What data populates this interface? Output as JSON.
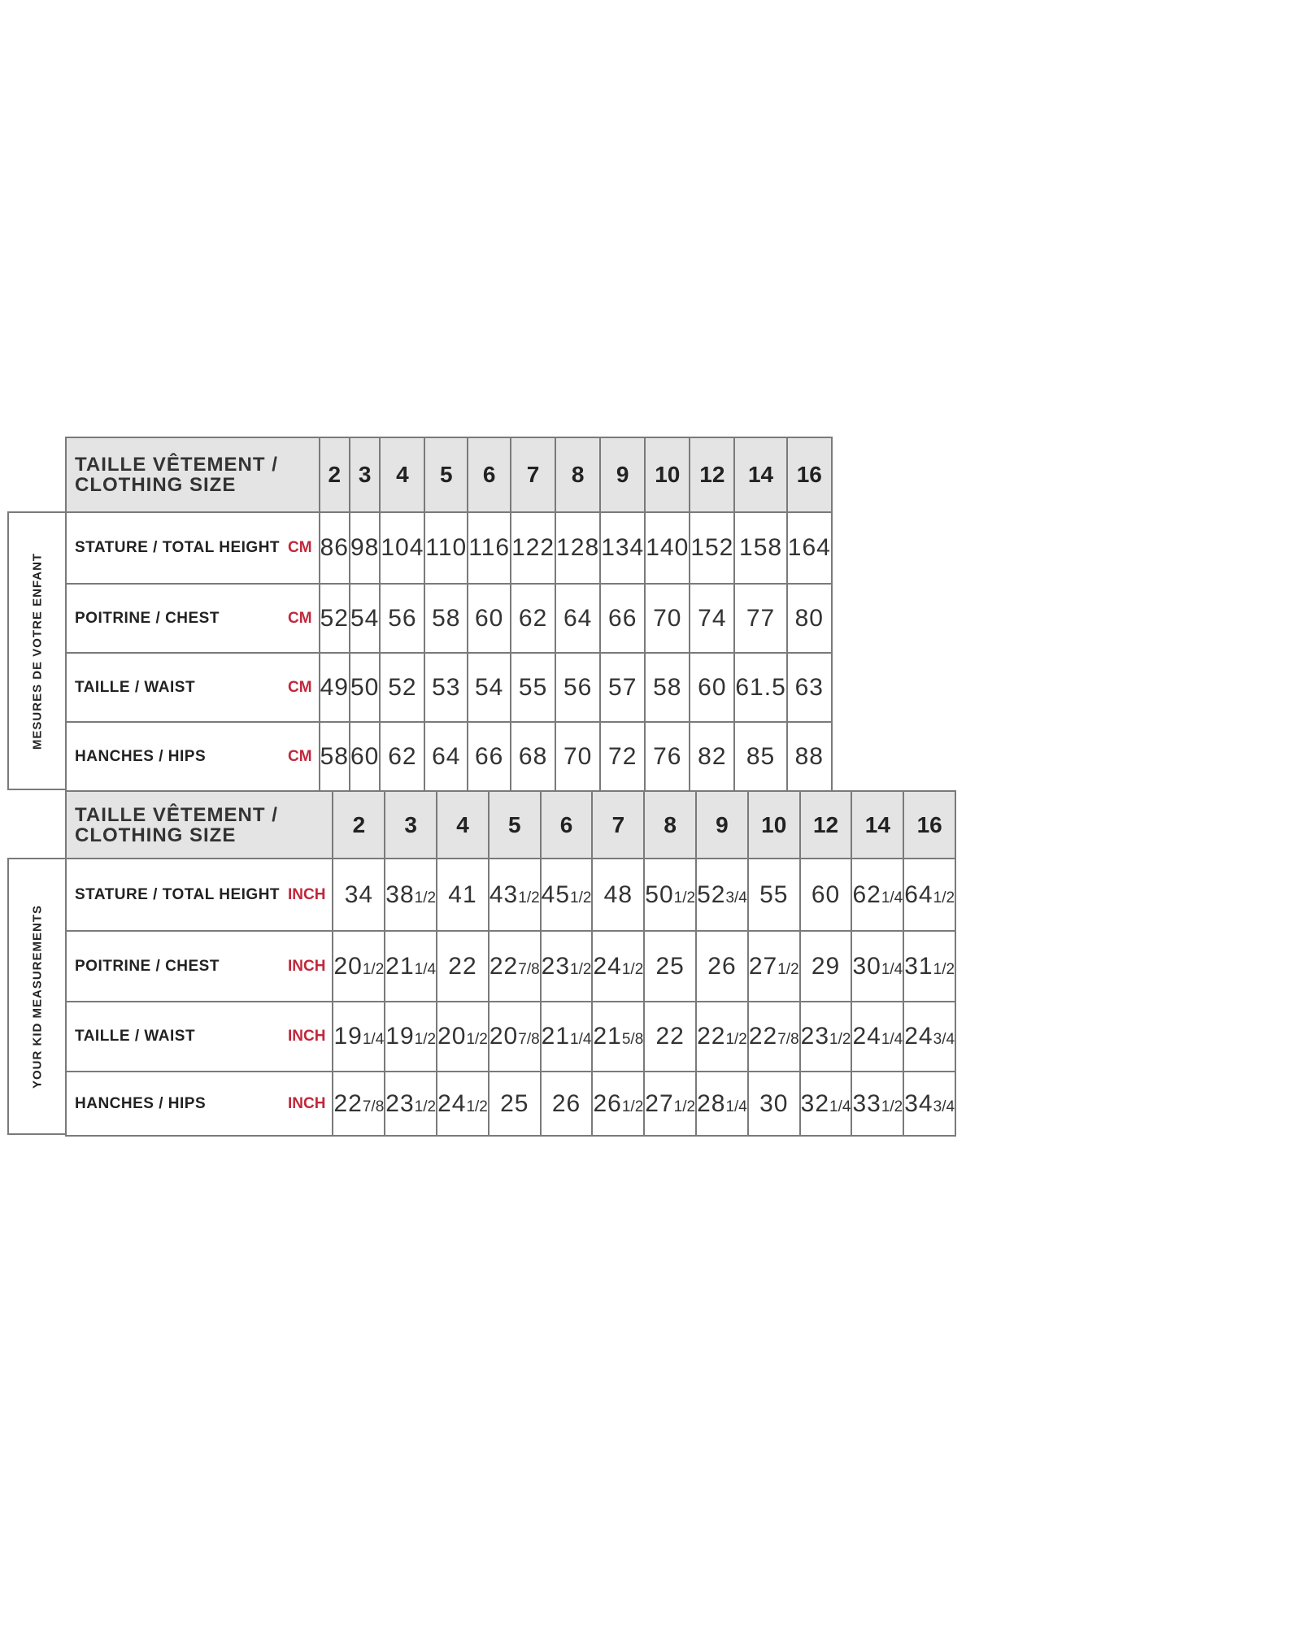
{
  "unit_color": "#c0283c",
  "header_fill": "#e4e4e4",
  "sections": [
    {
      "side_label": "MESURES DE VOTRE ENFANT",
      "header": {
        "title_line1": "TAILLE VÊTEMENT /",
        "title_line2": "CLOTHING SIZE",
        "sizes": [
          "2",
          "3",
          "4",
          "5",
          "6",
          "7",
          "8",
          "9",
          "10",
          "12",
          "14",
          "16"
        ]
      },
      "rows": [
        {
          "label": "STATURE / TOTAL HEIGHT",
          "unit": "CM",
          "values": [
            "86",
            "98",
            "104",
            "110",
            "116",
            "122",
            "128",
            "134",
            "140",
            "152",
            "158",
            "164"
          ]
        },
        {
          "label": "POITRINE / CHEST",
          "unit": "CM",
          "values": [
            "52",
            "54",
            "56",
            "58",
            "60",
            "62",
            "64",
            "66",
            "70",
            "74",
            "77",
            "80"
          ]
        },
        {
          "label": "TAILLE / WAIST",
          "unit": "CM",
          "values": [
            "49",
            "50",
            "52",
            "53",
            "54",
            "55",
            "56",
            "57",
            "58",
            "60",
            "61.5",
            "63"
          ]
        },
        {
          "label": "HANCHES / HIPS",
          "unit": "CM",
          "values": [
            "58",
            "60",
            "62",
            "64",
            "66",
            "68",
            "70",
            "72",
            "76",
            "82",
            "85",
            "88"
          ]
        }
      ]
    },
    {
      "side_label": "YOUR KID MEASUREMENTS",
      "header": {
        "title_line1": "TAILLE VÊTEMENT /",
        "title_line2": "CLOTHING SIZE",
        "sizes": [
          "2",
          "3",
          "4",
          "5",
          "6",
          "7",
          "8",
          "9",
          "10",
          "12",
          "14",
          "16"
        ]
      },
      "rows": [
        {
          "label": "STATURE / TOTAL HEIGHT",
          "unit": "INCH",
          "values": [
            "34",
            "38 1/2",
            "41",
            "43 1/2",
            "45 1/2",
            "48",
            "50 1/2",
            "52 3/4",
            "55",
            "60",
            "62 1/4",
            "64 1/2"
          ]
        },
        {
          "label": "POITRINE / CHEST",
          "unit": "INCH",
          "values": [
            "20 1/2",
            "21 1/4",
            "22",
            "22 7/8",
            "23 1/2",
            "24 1/2",
            "25",
            "26",
            "27 1/2",
            "29",
            "30 1/4",
            "31 1/2"
          ]
        },
        {
          "label": "TAILLE / WAIST",
          "unit": "INCH",
          "values": [
            "19 1/4",
            "19 1/2",
            "20 1/2",
            "20 7/8",
            "21 1/4",
            "21 5/8",
            "22",
            "22 1/2",
            "22 7/8",
            "23 1/2",
            "24 1/4",
            "24 3/4"
          ]
        },
        {
          "label": "HANCHES / HIPS",
          "unit": "INCH",
          "values": [
            "22 7/8",
            "23 1/2",
            "24 1/2",
            "25",
            "26",
            "26 1/2",
            "27 1/2",
            "28 1/4",
            "30",
            "32 1/4",
            "33 1/2",
            "34 3/4"
          ]
        }
      ]
    }
  ]
}
